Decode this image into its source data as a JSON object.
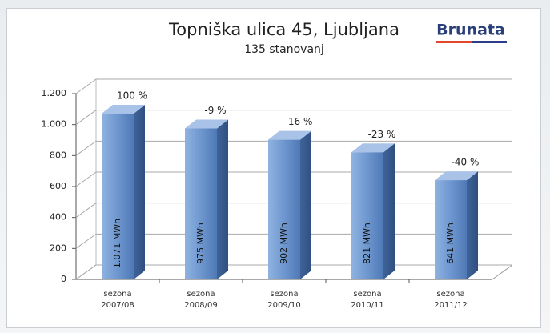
{
  "chart_data": {
    "type": "bar3d",
    "title": "Topniška ulica 45, Ljubljana",
    "subtitle": "135 stanovanj",
    "logo": "Brunata",
    "categories": [
      "sezona 2007/08",
      "sezona 2008/09",
      "sezona 2009/10",
      "sezona 2010/11",
      "sezona 2011/12"
    ],
    "values": [
      1071,
      975,
      902,
      821,
      641
    ],
    "value_labels": [
      "1.071 MWh",
      "975 MWh",
      "902 MWh",
      "821 MWh",
      "641 MWh"
    ],
    "annotations": [
      "100 %",
      "-9 %",
      "-16 %",
      "-23 %",
      "-40 %"
    ],
    "color": "#5b87c4",
    "ylim": [
      0,
      1200
    ],
    "yticks": [
      0,
      200,
      400,
      600,
      800,
      {
        "value": 1000,
        "label": "1.000"
      },
      {
        "value": 1200,
        "label": "1.200"
      }
    ],
    "grid": true
  }
}
